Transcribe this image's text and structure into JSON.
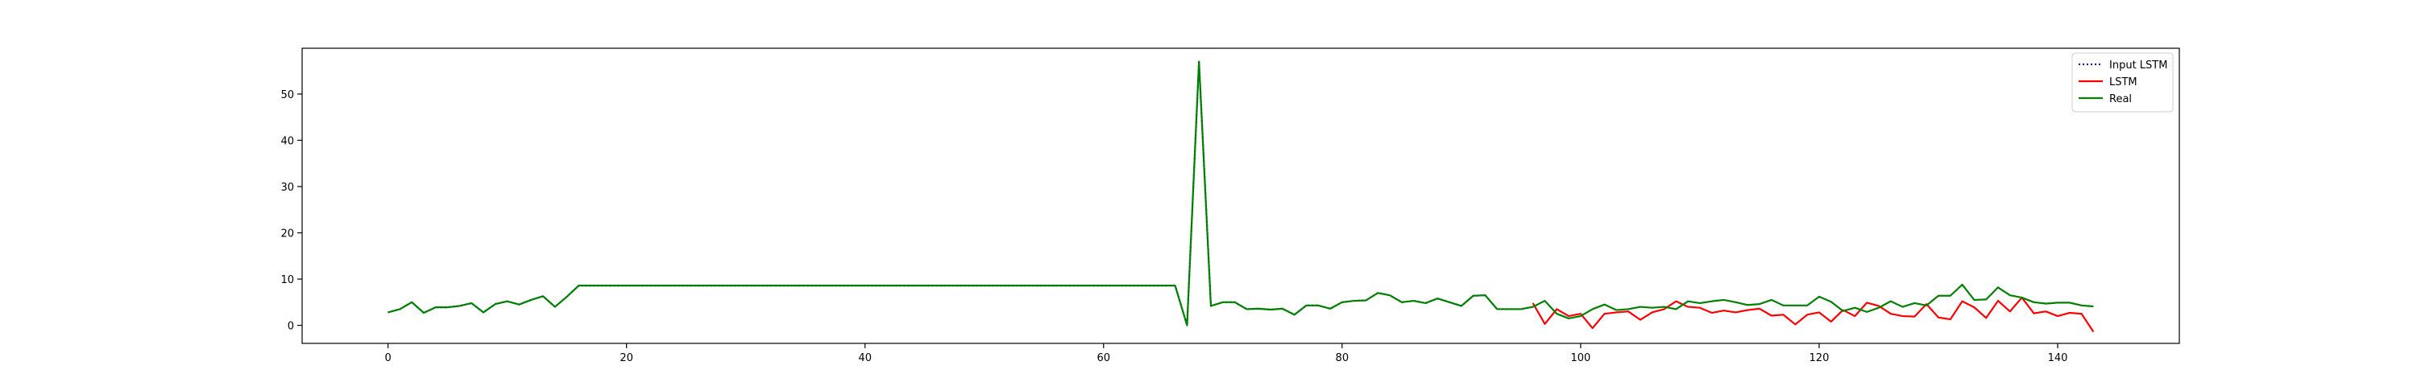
{
  "chart_data": {
    "type": "line",
    "title": "",
    "xlabel": "",
    "ylabel": "",
    "xlim": [
      -7.2,
      150.2
    ],
    "ylim": [
      -3.9,
      59.9
    ],
    "xticks": [
      0,
      20,
      40,
      60,
      80,
      100,
      120,
      140
    ],
    "yticks": [
      0,
      10,
      20,
      30,
      40,
      50
    ],
    "grid": false,
    "legend_position": "top-right",
    "legend": [
      "Input LSTM",
      "LSTM",
      "Real"
    ],
    "series": [
      {
        "name": "Input LSTM",
        "color": "#1f1f8f",
        "style": "dotted",
        "x": [
          0,
          1,
          2,
          3,
          4,
          5,
          6,
          7,
          8,
          9,
          10,
          11,
          12,
          13,
          14,
          15,
          16,
          17,
          18,
          19,
          20,
          21,
          22,
          23,
          24,
          25,
          26,
          27,
          28,
          29,
          30,
          31,
          32,
          33,
          34,
          35,
          36,
          37,
          38,
          39,
          40,
          41,
          42,
          43,
          44,
          45,
          46,
          47,
          48,
          49,
          50,
          51,
          52,
          53,
          54,
          55,
          56,
          57,
          58,
          59,
          60,
          61,
          62,
          63,
          64,
          65,
          66,
          67,
          68,
          69,
          70,
          71,
          72,
          73,
          74,
          75,
          76,
          77,
          78,
          79,
          80,
          81,
          82,
          83,
          84,
          85,
          86,
          87,
          88,
          89,
          90,
          91,
          92,
          93,
          94,
          95,
          96
        ],
        "values": [
          2.8,
          3.5,
          5.0,
          2.7,
          3.9,
          3.9,
          4.2,
          4.8,
          2.8,
          4.6,
          5.2,
          4.5,
          5.5,
          6.3,
          4.0,
          6.2,
          8.6,
          8.6,
          8.6,
          8.6,
          8.6,
          8.6,
          8.6,
          8.6,
          8.6,
          8.6,
          8.6,
          8.6,
          8.6,
          8.6,
          8.6,
          8.6,
          8.6,
          8.6,
          8.6,
          8.6,
          8.6,
          8.6,
          8.6,
          8.6,
          8.6,
          8.6,
          8.6,
          8.6,
          8.6,
          8.6,
          8.6,
          8.6,
          8.6,
          8.6,
          8.6,
          8.6,
          8.6,
          8.6,
          8.6,
          8.6,
          8.6,
          8.6,
          8.6,
          8.6,
          8.6,
          8.6,
          8.6,
          8.6,
          8.6,
          8.6,
          8.6,
          0.0,
          57.0,
          4.2,
          5.0,
          5.0,
          3.5,
          3.6,
          3.4,
          3.6,
          2.3,
          4.3,
          4.3,
          3.6,
          5.0,
          5.3,
          5.4,
          7.0,
          6.5,
          5.0,
          5.3,
          4.8,
          5.8,
          5.0,
          4.2,
          6.4,
          6.5,
          3.5,
          3.5,
          3.5,
          4.0
        ]
      },
      {
        "name": "LSTM",
        "color": "#ff0000",
        "style": "solid",
        "x": [
          96,
          97,
          98,
          99,
          100,
          101,
          102,
          103,
          104,
          105,
          106,
          107,
          108,
          109,
          110,
          111,
          112,
          113,
          114,
          115,
          116,
          117,
          118,
          119,
          120,
          121,
          122,
          123,
          124,
          125,
          126,
          127,
          128,
          129,
          130,
          131,
          132,
          133,
          134,
          135,
          136,
          137,
          138,
          139,
          140,
          141,
          142,
          143
        ],
        "values": [
          4.8,
          0.3,
          3.5,
          2.0,
          2.5,
          -0.6,
          2.5,
          2.8,
          3.0,
          1.2,
          2.8,
          3.5,
          5.2,
          4.0,
          3.8,
          2.7,
          3.2,
          2.8,
          3.3,
          3.6,
          2.1,
          2.3,
          0.2,
          2.3,
          2.8,
          0.8,
          3.3,
          2.0,
          4.9,
          4.2,
          2.5,
          2.0,
          1.9,
          4.6,
          1.7,
          1.3,
          5.2,
          3.9,
          1.6,
          5.3,
          3.0,
          6.0,
          2.6,
          3.0,
          2.0,
          2.7,
          2.5,
          -1.4
        ]
      },
      {
        "name": "Real",
        "color": "#008000",
        "style": "solid",
        "x": [
          0,
          1,
          2,
          3,
          4,
          5,
          6,
          7,
          8,
          9,
          10,
          11,
          12,
          13,
          14,
          15,
          16,
          17,
          18,
          19,
          20,
          21,
          22,
          23,
          24,
          25,
          26,
          27,
          28,
          29,
          30,
          31,
          32,
          33,
          34,
          35,
          36,
          37,
          38,
          39,
          40,
          41,
          42,
          43,
          44,
          45,
          46,
          47,
          48,
          49,
          50,
          51,
          52,
          53,
          54,
          55,
          56,
          57,
          58,
          59,
          60,
          61,
          62,
          63,
          64,
          65,
          66,
          67,
          68,
          69,
          70,
          71,
          72,
          73,
          74,
          75,
          76,
          77,
          78,
          79,
          80,
          81,
          82,
          83,
          84,
          85,
          86,
          87,
          88,
          89,
          90,
          91,
          92,
          93,
          94,
          95,
          96,
          97,
          98,
          99,
          100,
          101,
          102,
          103,
          104,
          105,
          106,
          107,
          108,
          109,
          110,
          111,
          112,
          113,
          114,
          115,
          116,
          117,
          118,
          119,
          120,
          121,
          122,
          123,
          124,
          125,
          126,
          127,
          128,
          129,
          130,
          131,
          132,
          133,
          134,
          135,
          136,
          137,
          138,
          139,
          140,
          141,
          142,
          143
        ],
        "values": [
          2.8,
          3.5,
          5.0,
          2.7,
          3.9,
          3.9,
          4.2,
          4.8,
          2.8,
          4.6,
          5.2,
          4.5,
          5.5,
          6.3,
          4.0,
          6.2,
          8.6,
          8.6,
          8.6,
          8.6,
          8.6,
          8.6,
          8.6,
          8.6,
          8.6,
          8.6,
          8.6,
          8.6,
          8.6,
          8.6,
          8.6,
          8.6,
          8.6,
          8.6,
          8.6,
          8.6,
          8.6,
          8.6,
          8.6,
          8.6,
          8.6,
          8.6,
          8.6,
          8.6,
          8.6,
          8.6,
          8.6,
          8.6,
          8.6,
          8.6,
          8.6,
          8.6,
          8.6,
          8.6,
          8.6,
          8.6,
          8.6,
          8.6,
          8.6,
          8.6,
          8.6,
          8.6,
          8.6,
          8.6,
          8.6,
          8.6,
          8.6,
          0.0,
          57.0,
          4.2,
          5.0,
          5.0,
          3.5,
          3.6,
          3.4,
          3.6,
          2.3,
          4.3,
          4.3,
          3.6,
          5.0,
          5.3,
          5.4,
          7.0,
          6.5,
          5.0,
          5.3,
          4.8,
          5.8,
          5.0,
          4.2,
          6.4,
          6.5,
          3.5,
          3.5,
          3.5,
          4.0,
          5.3,
          2.5,
          1.5,
          2.0,
          3.5,
          4.5,
          3.3,
          3.5,
          4.0,
          3.8,
          4.0,
          3.5,
          5.2,
          4.8,
          5.2,
          5.5,
          5.0,
          4.4,
          4.6,
          5.5,
          4.3,
          4.3,
          4.3,
          6.2,
          5.1,
          3.1,
          3.8,
          2.9,
          3.8,
          5.2,
          4.0,
          4.8,
          4.3,
          6.4,
          6.4,
          8.8,
          5.5,
          5.6,
          8.2,
          6.5,
          6.0,
          5.0,
          4.7,
          4.9,
          4.9,
          4.3,
          4.1
        ]
      }
    ]
  }
}
